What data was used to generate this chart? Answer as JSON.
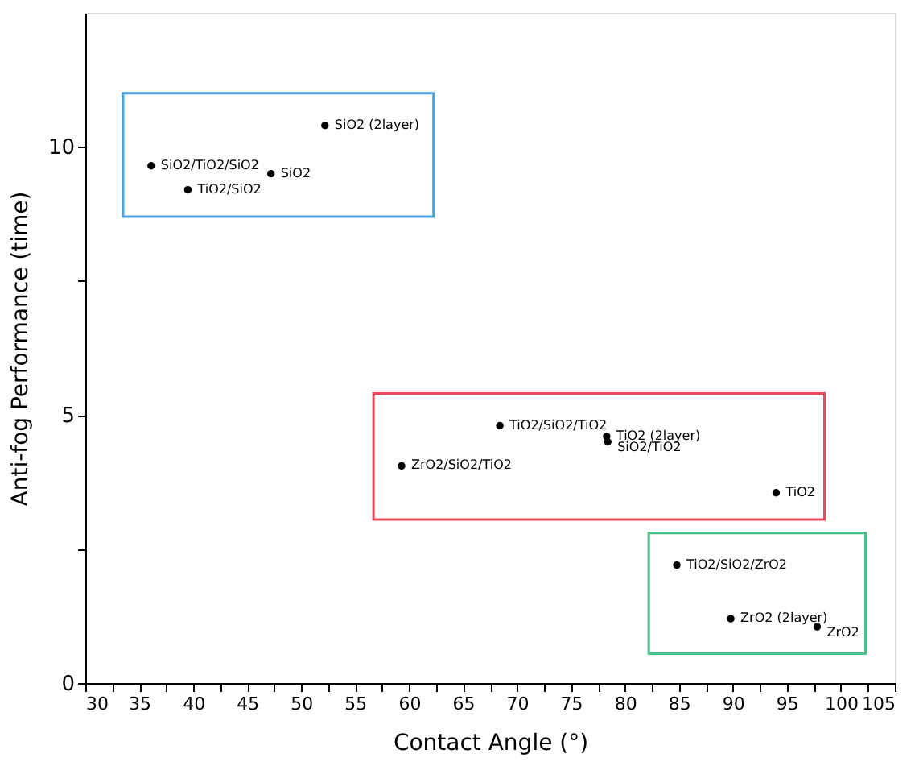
{
  "chart_data": {
    "type": "scatter",
    "xlabel": "Contact Angle (°)",
    "ylabel": "Anti-fog Performance (time)",
    "xlim": [
      30,
      105
    ],
    "ylim": [
      0,
      12.5
    ],
    "xticks": [
      30,
      {
        "value": 32.5,
        "label": null
      },
      35,
      {
        "value": 37.5,
        "label": null
      },
      40,
      {
        "value": 42.5,
        "label": null
      },
      45,
      {
        "value": 47.5,
        "label": null
      },
      50,
      {
        "value": 52.5,
        "label": null
      },
      55,
      {
        "value": 57.5,
        "label": null
      },
      60,
      {
        "value": 62.5,
        "label": null
      },
      65,
      {
        "value": 67.5,
        "label": null
      },
      70,
      {
        "value": 72.5,
        "label": null
      },
      75,
      {
        "value": 77.5,
        "label": null
      },
      80,
      {
        "value": 82.5,
        "label": null
      },
      85,
      {
        "value": 87.5,
        "label": null
      },
      90,
      {
        "value": 92.5,
        "label": null
      },
      95,
      {
        "value": 97.5,
        "label": null
      },
      100,
      {
        "value": 102.5,
        "label": null
      },
      105
    ],
    "yticks": [
      0,
      {
        "value": 2.5,
        "label": null
      },
      5,
      {
        "value": 7.5,
        "label": null
      },
      10
    ],
    "grid": false,
    "marker": "circle",
    "series": [
      {
        "color": "#000000",
        "x": [
          52.2,
          36.1,
          47.2,
          39.5
        ],
        "values": [
          10.4,
          9.65,
          9.5,
          9.2
        ]
      },
      {
        "color": "#000000",
        "x": [
          68.4,
          78.3,
          78.4,
          59.3,
          94.0
        ],
        "values": [
          4.8,
          4.6,
          4.5,
          4.05,
          3.55
        ]
      },
      {
        "color": "#000000",
        "x": [
          84.8,
          89.8,
          97.8
        ],
        "values": [
          2.2,
          1.2,
          1.05
        ]
      }
    ],
    "annotations": [
      {
        "text": "SiO2 (2layer)",
        "x": 52.2,
        "y": 10.4
      },
      {
        "text": "SiO2/TiO2/SiO2",
        "x": 36.1,
        "y": 9.65
      },
      {
        "text": "SiO2",
        "x": 47.2,
        "y": 9.5
      },
      {
        "text": "TiO2/SiO2",
        "x": 39.5,
        "y": 9.2
      },
      {
        "text": "TiO2/SiO2/TiO2",
        "x": 68.4,
        "y": 4.8
      },
      {
        "text": "TiO2 (2layer)",
        "x": 78.3,
        "y": 4.6
      },
      {
        "text": "SiO2/TiO2",
        "x": 78.4,
        "y": 4.5
      },
      {
        "text": "ZrO2/SiO2/TiO2",
        "x": 59.3,
        "y": 4.05
      },
      {
        "text": "TiO2",
        "x": 94.0,
        "y": 3.55
      },
      {
        "text": "TiO2/SiO2/ZrO2",
        "x": 84.8,
        "y": 2.2
      },
      {
        "text": "ZrO2 (2layer)",
        "x": 89.8,
        "y": 1.2
      },
      {
        "text": "ZrO2",
        "x": 97.8,
        "y": 1.05
      }
    ]
  }
}
